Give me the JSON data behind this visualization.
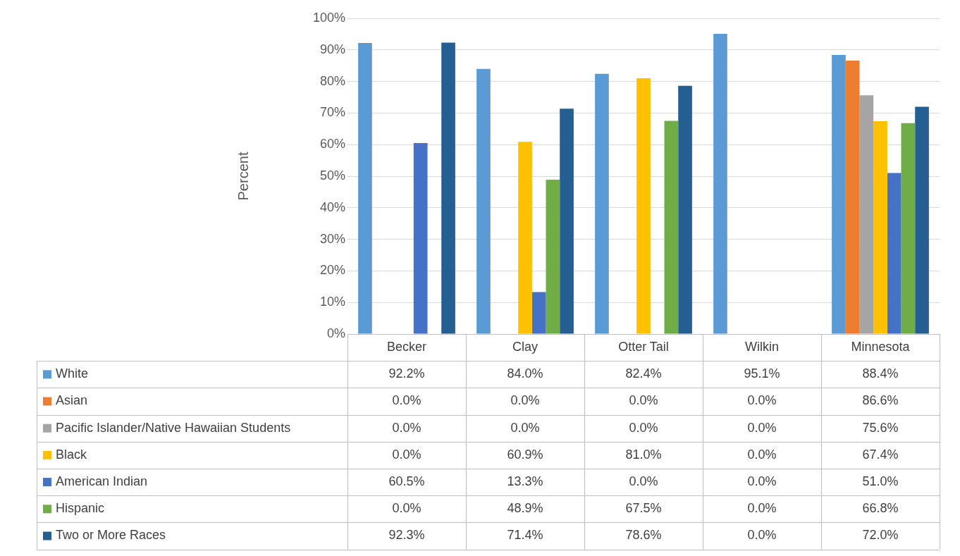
{
  "chart_data": {
    "type": "bar",
    "ylabel": "Percent",
    "categories": [
      "Becker",
      "Clay",
      "Otter Tail",
      "Wilkin",
      "Minnesota"
    ],
    "series": [
      {
        "name": "White",
        "color": "#5b9bd5",
        "values": [
          92.2,
          84.0,
          82.4,
          95.1,
          88.4
        ],
        "value_labels": [
          "92.2%",
          "84.0%",
          "82.4%",
          "95.1%",
          "88.4%"
        ]
      },
      {
        "name": "Asian",
        "color": "#ed7d31",
        "values": [
          0,
          0,
          0,
          0,
          86.6
        ],
        "value_labels": [
          "0.0%",
          "0.0%",
          "0.0%",
          "0.0%",
          "86.6%"
        ]
      },
      {
        "name": "Pacific Islander/Native Hawaiian Students",
        "color": "#a5a5a5",
        "values": [
          0,
          0,
          0,
          0,
          75.6
        ],
        "value_labels": [
          "0.0%",
          "0.0%",
          "0.0%",
          "0.0%",
          "75.6%"
        ]
      },
      {
        "name": "Black",
        "color": "#ffc000",
        "values": [
          0,
          60.9,
          81.0,
          0,
          67.4
        ],
        "value_labels": [
          "0.0%",
          "60.9%",
          "81.0%",
          "0.0%",
          "67.4%"
        ]
      },
      {
        "name": "American Indian",
        "color": "#4472c4",
        "values": [
          60.5,
          13.3,
          0,
          0,
          51.0
        ],
        "value_labels": [
          "60.5%",
          "13.3%",
          "0.0%",
          "0.0%",
          "51.0%"
        ]
      },
      {
        "name": "Hispanic",
        "color": "#70ad47",
        "values": [
          0,
          48.9,
          67.5,
          0,
          66.8
        ],
        "value_labels": [
          "0.0%",
          "48.9%",
          "67.5%",
          "0.0%",
          "66.8%"
        ]
      },
      {
        "name": "Two or More Races",
        "color": "#255e91",
        "values": [
          92.3,
          71.4,
          78.6,
          0,
          72.0
        ],
        "value_labels": [
          "92.3%",
          "71.4%",
          "78.6%",
          "0.0%",
          "72.0%"
        ]
      }
    ],
    "ylim": [
      0,
      100
    ],
    "yticks": [
      {
        "value": 0,
        "label": "0%"
      },
      {
        "value": 10,
        "label": "10%"
      },
      {
        "value": 20,
        "label": "20%"
      },
      {
        "value": 30,
        "label": "30%"
      },
      {
        "value": 40,
        "label": "40%"
      },
      {
        "value": 50,
        "label": "50%"
      },
      {
        "value": 60,
        "label": "60%"
      },
      {
        "value": 70,
        "label": "70%"
      },
      {
        "value": 80,
        "label": "80%"
      },
      {
        "value": 90,
        "label": "90%"
      },
      {
        "value": 100,
        "label": "100%"
      }
    ],
    "grid": "y",
    "legend": "bottom"
  }
}
